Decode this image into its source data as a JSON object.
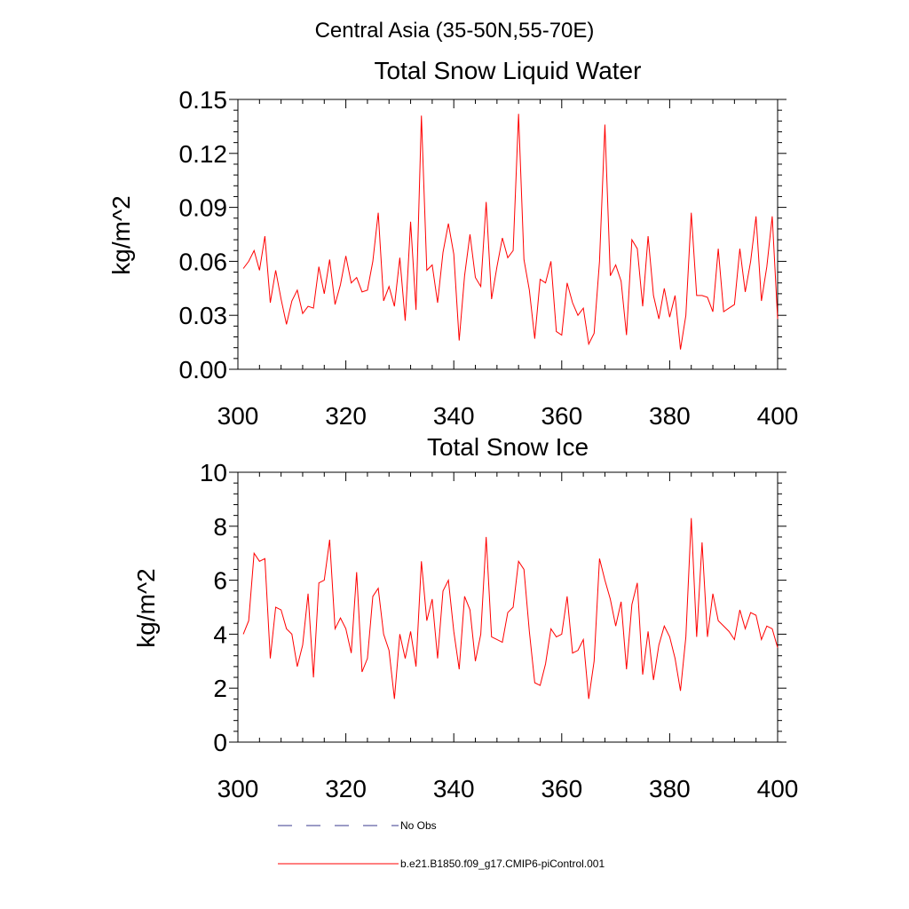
{
  "figure_title": "Central Asia (35-50N,55-70E)",
  "chart_data": [
    {
      "type": "line",
      "title": "Total Snow Liquid Water",
      "ylabel": "kg/m^2",
      "xlabel": "",
      "xlim": [
        300,
        400
      ],
      "ylim": [
        0,
        0.15
      ],
      "x_ticks": [
        300,
        320,
        340,
        360,
        380,
        400
      ],
      "x_tick_labels": [
        "300",
        "320",
        "340",
        "360",
        "380",
        "400"
      ],
      "y_ticks": [
        0,
        0.03,
        0.06,
        0.09,
        0.12,
        0.15
      ],
      "y_tick_labels": [
        "0.00",
        "0.03",
        "0.06",
        "0.09",
        "0.12",
        "0.15"
      ],
      "x_start": 301,
      "series": [
        {
          "name": "b.e21.B1850.f09_g17.CMIP6-piControl.001",
          "color": "#ff0000",
          "values": [
            0.056,
            0.06,
            0.066,
            0.055,
            0.074,
            0.037,
            0.055,
            0.039,
            0.025,
            0.038,
            0.044,
            0.031,
            0.035,
            0.034,
            0.057,
            0.042,
            0.061,
            0.036,
            0.047,
            0.063,
            0.048,
            0.051,
            0.043,
            0.044,
            0.06,
            0.087,
            0.038,
            0.046,
            0.035,
            0.062,
            0.027,
            0.082,
            0.033,
            0.141,
            0.055,
            0.058,
            0.037,
            0.065,
            0.081,
            0.064,
            0.016,
            0.052,
            0.075,
            0.051,
            0.046,
            0.093,
            0.039,
            0.057,
            0.073,
            0.062,
            0.066,
            0.142,
            0.061,
            0.044,
            0.017,
            0.05,
            0.048,
            0.06,
            0.021,
            0.019,
            0.048,
            0.037,
            0.03,
            0.034,
            0.014,
            0.02,
            0.06,
            0.136,
            0.052,
            0.058,
            0.049,
            0.019,
            0.072,
            0.067,
            0.035,
            0.074,
            0.041,
            0.028,
            0.045,
            0.029,
            0.041,
            0.011,
            0.03,
            0.087,
            0.041,
            0.041,
            0.04,
            0.032,
            0.067,
            0.032,
            0.034,
            0.036,
            0.067,
            0.043,
            0.06,
            0.085,
            0.038,
            0.057,
            0.085,
            0.028
          ]
        }
      ]
    },
    {
      "type": "line",
      "title": "Total Snow Ice",
      "ylabel": "kg/m^2",
      "xlabel": "",
      "xlim": [
        300,
        400
      ],
      "ylim": [
        0,
        10
      ],
      "x_ticks": [
        300,
        320,
        340,
        360,
        380,
        400
      ],
      "x_tick_labels": [
        "300",
        "320",
        "340",
        "360",
        "380",
        "400"
      ],
      "y_ticks": [
        0,
        2,
        4,
        6,
        8,
        10
      ],
      "y_tick_labels": [
        "0",
        "2",
        "4",
        "6",
        "8",
        "10"
      ],
      "x_start": 301,
      "series": [
        {
          "name": "b.e21.B1850.f09_g17.CMIP6-piControl.001",
          "color": "#ff0000",
          "values": [
            4.0,
            4.5,
            7.0,
            6.7,
            6.8,
            3.1,
            5.0,
            4.9,
            4.2,
            4.0,
            2.8,
            3.6,
            5.5,
            2.4,
            5.9,
            6.0,
            7.5,
            4.2,
            4.6,
            4.2,
            3.3,
            6.3,
            2.6,
            3.1,
            5.4,
            5.7,
            4.0,
            3.4,
            1.6,
            4.0,
            3.1,
            4.1,
            2.8,
            6.7,
            4.5,
            5.3,
            3.1,
            5.6,
            6.0,
            4.1,
            2.7,
            5.4,
            4.9,
            3.0,
            4.0,
            7.6,
            3.9,
            3.8,
            3.7,
            4.8,
            5.0,
            6.7,
            6.4,
            4.1,
            2.2,
            2.1,
            2.9,
            4.2,
            3.9,
            4.0,
            5.4,
            3.3,
            3.4,
            3.8,
            1.6,
            3.0,
            6.8,
            6.0,
            5.3,
            4.3,
            5.2,
            2.7,
            5.1,
            5.9,
            2.5,
            4.1,
            2.3,
            3.6,
            4.3,
            3.9,
            3.1,
            1.9,
            3.9,
            8.3,
            3.9,
            7.4,
            3.9,
            5.5,
            4.5,
            4.3,
            4.1,
            3.8,
            4.9,
            4.2,
            4.8,
            4.7,
            3.8,
            4.3,
            4.2,
            3.5
          ]
        }
      ]
    }
  ],
  "legend": {
    "placement": "bottom-left",
    "items": [
      {
        "label": "No Obs",
        "color": "#3a3a8c",
        "dash": "dashed"
      },
      {
        "label": "b.e21.B1850.f09_g17.CMIP6-piControl.001",
        "color": "#ff0000",
        "dash": "solid"
      }
    ]
  }
}
